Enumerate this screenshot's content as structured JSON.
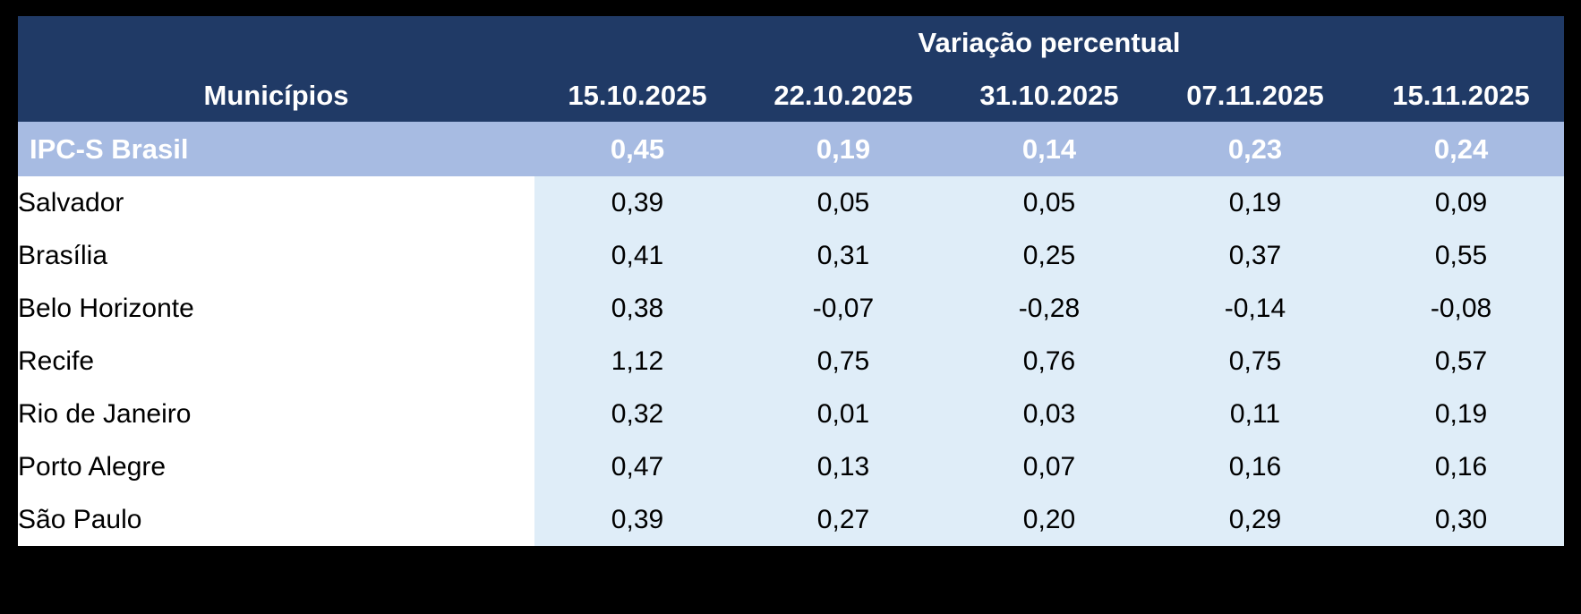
{
  "colors": {
    "page_bg": "#000000",
    "header_bg": "#203A66",
    "header_text": "#FFFFFF",
    "summary_row_bg": "#A7BBE2",
    "summary_row_text": "#FFFFFF",
    "name_column_bg": "#FFFFFF",
    "value_area_bg": "#DFEDF8",
    "data_text": "#000000"
  },
  "table": {
    "group_header": "Variação percentual",
    "municipality_header": "Municípios",
    "date_headers": [
      "15.10.2025",
      "22.10.2025",
      "31.10.2025",
      "07.11.2025",
      "15.11.2025"
    ],
    "summary_row": {
      "name": "IPC-S Brasil",
      "values": [
        "0,45",
        "0,19",
        "0,14",
        "0,23",
        "0,24"
      ]
    },
    "rows": [
      {
        "name": "Salvador",
        "values": [
          "0,39",
          "0,05",
          "0,05",
          "0,19",
          "0,09"
        ]
      },
      {
        "name": "Brasília",
        "values": [
          "0,41",
          "0,31",
          "0,25",
          "0,37",
          "0,55"
        ]
      },
      {
        "name": "Belo Horizonte",
        "values": [
          "0,38",
          "-0,07",
          "-0,28",
          "-0,14",
          "-0,08"
        ]
      },
      {
        "name": "Recife",
        "values": [
          "1,12",
          "0,75",
          "0,76",
          "0,75",
          "0,57"
        ]
      },
      {
        "name": "Rio de Janeiro",
        "values": [
          "0,32",
          "0,01",
          "0,03",
          "0,11",
          "0,19"
        ]
      },
      {
        "name": "Porto Alegre",
        "values": [
          "0,47",
          "0,13",
          "0,07",
          "0,16",
          "0,16"
        ]
      },
      {
        "name": "São Paulo",
        "values": [
          "0,39",
          "0,27",
          "0,20",
          "0,29",
          "0,30"
        ]
      }
    ]
  },
  "chart_data": {
    "type": "table",
    "title": "Variação percentual",
    "columns": [
      "Municípios",
      "15.10.2025",
      "22.10.2025",
      "31.10.2025",
      "07.11.2025",
      "15.11.2025"
    ],
    "rows": [
      [
        "IPC-S Brasil",
        0.45,
        0.19,
        0.14,
        0.23,
        0.24
      ],
      [
        "Salvador",
        0.39,
        0.05,
        0.05,
        0.19,
        0.09
      ],
      [
        "Brasília",
        0.41,
        0.31,
        0.25,
        0.37,
        0.55
      ],
      [
        "Belo Horizonte",
        0.38,
        -0.07,
        -0.28,
        -0.14,
        -0.08
      ],
      [
        "Recife",
        1.12,
        0.75,
        0.76,
        0.75,
        0.57
      ],
      [
        "Rio de Janeiro",
        0.32,
        0.01,
        0.03,
        0.11,
        0.19
      ],
      [
        "Porto Alegre",
        0.47,
        0.13,
        0.07,
        0.16,
        0.16
      ],
      [
        "São Paulo",
        0.39,
        0.27,
        0.2,
        0.29,
        0.3
      ]
    ]
  }
}
